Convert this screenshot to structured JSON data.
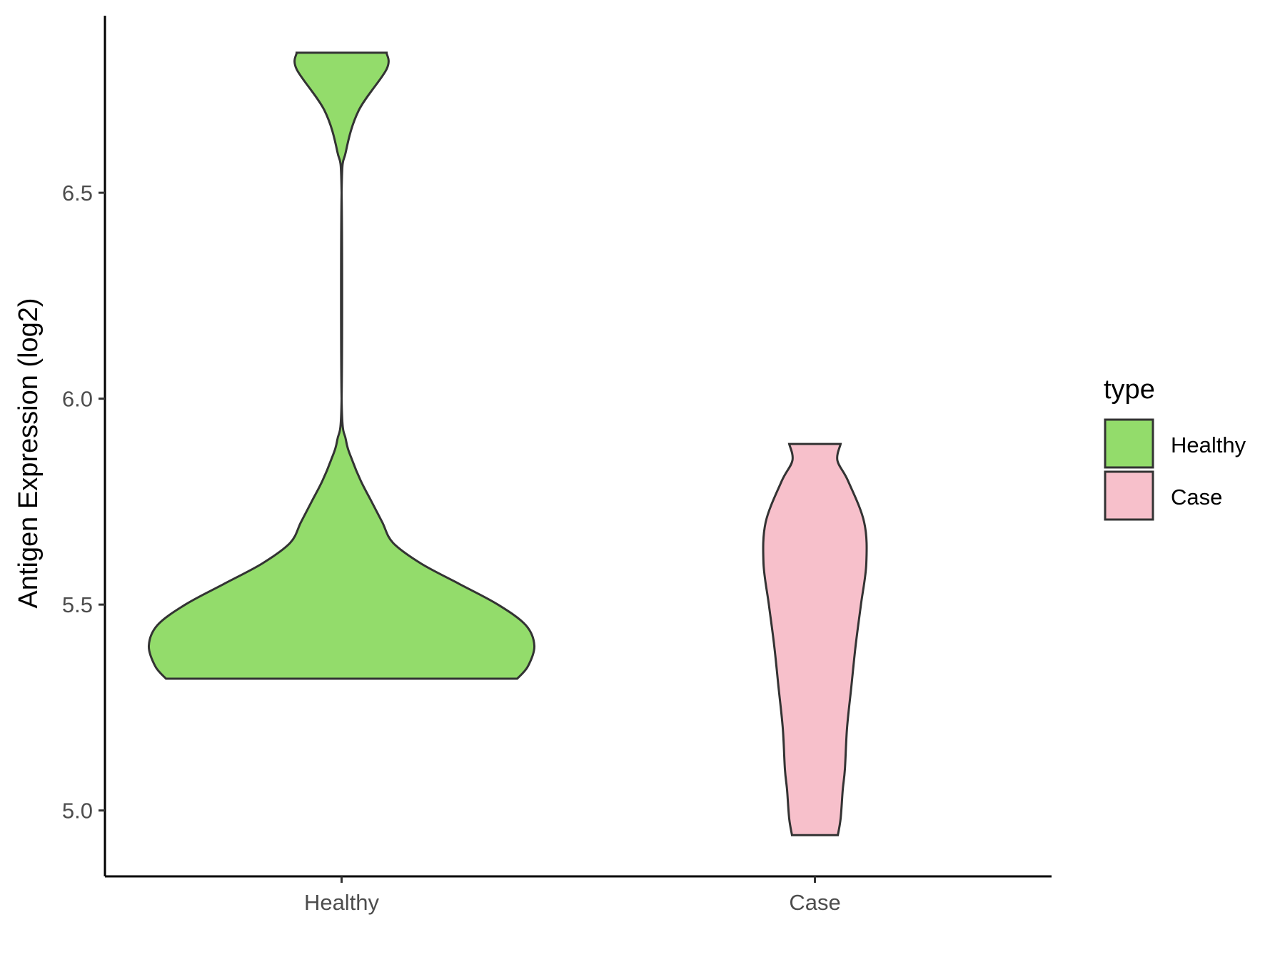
{
  "chart_data": {
    "type": "violin",
    "ylabel": "Antigen Expression (log2)",
    "xlabel": "",
    "categories": [
      "Healthy",
      "Case"
    ],
    "ylim": [
      4.84,
      6.93
    ],
    "yticks": [
      5.0,
      5.5,
      6.0,
      6.5
    ],
    "ytick_labels": [
      "5.0",
      "5.5",
      "6.0",
      "6.5"
    ],
    "grid": false,
    "legend": {
      "title": "type",
      "placement": "right",
      "entries": [
        {
          "label": "Healthy",
          "color": "#93dc6b"
        },
        {
          "label": "Case",
          "color": "#f7c0cb"
        }
      ]
    },
    "series": [
      {
        "category": "Healthy",
        "color": "#93dc6b",
        "y_min": 5.32,
        "y_max": 6.84,
        "density_profile": [
          [
            5.32,
            0.82
          ],
          [
            5.35,
            0.87
          ],
          [
            5.4,
            0.9
          ],
          [
            5.45,
            0.86
          ],
          [
            5.5,
            0.73
          ],
          [
            5.55,
            0.55
          ],
          [
            5.6,
            0.37
          ],
          [
            5.65,
            0.24
          ],
          [
            5.7,
            0.19
          ],
          [
            5.75,
            0.14
          ],
          [
            5.8,
            0.09
          ],
          [
            5.85,
            0.05
          ],
          [
            5.9,
            0.02
          ],
          [
            6.0,
            0.0
          ],
          [
            6.5,
            0.0
          ],
          [
            6.6,
            0.02
          ],
          [
            6.7,
            0.08
          ],
          [
            6.8,
            0.21
          ],
          [
            6.84,
            0.21
          ]
        ]
      },
      {
        "category": "Case",
        "color": "#f7c0cb",
        "y_min": 4.94,
        "y_max": 5.89,
        "density_profile": [
          [
            4.94,
            0.107
          ],
          [
            4.98,
            0.12
          ],
          [
            5.05,
            0.13
          ],
          [
            5.1,
            0.14
          ],
          [
            5.2,
            0.15
          ],
          [
            5.3,
            0.17
          ],
          [
            5.4,
            0.19
          ],
          [
            5.5,
            0.215
          ],
          [
            5.6,
            0.24
          ],
          [
            5.7,
            0.23
          ],
          [
            5.8,
            0.155
          ],
          [
            5.85,
            0.105
          ],
          [
            5.89,
            0.12
          ]
        ]
      }
    ]
  }
}
